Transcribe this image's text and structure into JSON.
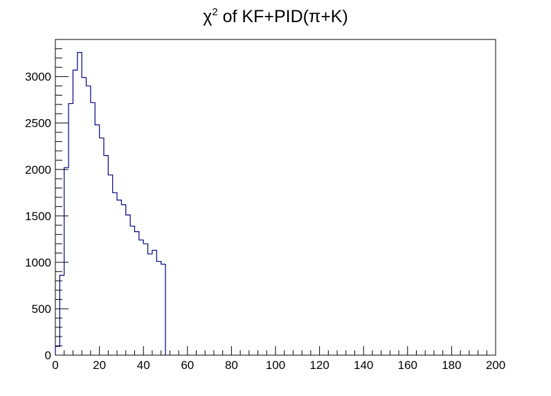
{
  "chart_data": {
    "type": "histogram",
    "title": {
      "base": "χ",
      "sup": "2",
      "rest": " of KF+PID(π+K)"
    },
    "xlabel": "",
    "ylabel": "",
    "xlim": [
      0,
      200
    ],
    "ylim": [
      0,
      3400
    ],
    "x_ticks": [
      0,
      20,
      40,
      60,
      80,
      100,
      120,
      140,
      160,
      180,
      200
    ],
    "y_ticks": [
      0,
      500,
      1000,
      1500,
      2000,
      2500,
      3000
    ],
    "bin_width": 2,
    "bin_start": 0,
    "values": [
      95,
      860,
      2020,
      2710,
      3070,
      3260,
      2990,
      2900,
      2720,
      2480,
      2340,
      2150,
      1940,
      1750,
      1670,
      1620,
      1510,
      1390,
      1330,
      1240,
      1200,
      1090,
      1130,
      1010,
      980
    ],
    "grid": false,
    "legend": "none",
    "line_color": "#000080"
  }
}
